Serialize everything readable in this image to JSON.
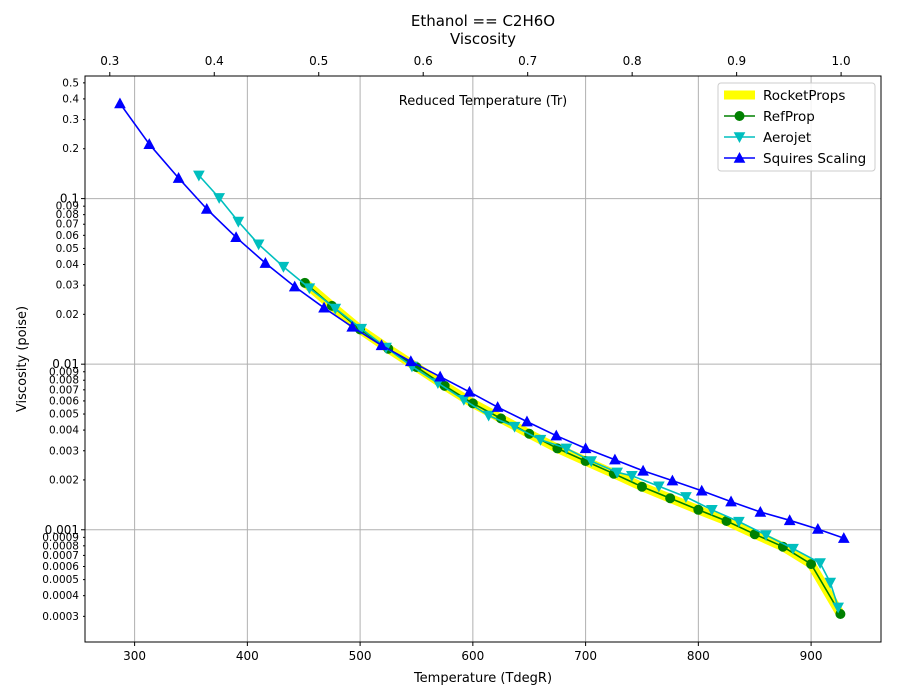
{
  "chart_data": {
    "type": "line",
    "title": "Ethanol == C2H6O",
    "subtitle": "Viscosity",
    "annotation": "Reduced Temperature (Tr)",
    "xlabel": "Temperature (TdegR)",
    "ylabel": "Viscosity (poise)",
    "y_scale": "log",
    "grid": true,
    "legend_position": "top-right",
    "xlim": [
      256,
      962
    ],
    "ylim": [
      0.00021,
      0.55
    ],
    "x_ticks": [
      300,
      400,
      500,
      600,
      700,
      800,
      900
    ],
    "x_tick_labels": [
      "300",
      "400",
      "500",
      "600",
      "700",
      "800",
      "900"
    ],
    "top_axis": {
      "label": "Reduced Temperature (Tr)",
      "tr_per_degR": 0.0010792,
      "ticks": [
        0.3,
        0.4,
        0.5,
        0.6,
        0.7,
        0.8,
        0.9,
        1.0
      ],
      "tick_labels": [
        "0.3",
        "0.4",
        "0.5",
        "0.6",
        "0.7",
        "0.8",
        "0.9",
        "1.0"
      ]
    },
    "y_major_ticks": [
      0.001,
      0.01,
      0.1
    ],
    "y_major_labels": [
      "0.001",
      "0.01",
      "0.1"
    ],
    "y_minor_ticks": [
      0.0003,
      0.0004,
      0.0005,
      0.0006,
      0.0007,
      0.0008,
      0.0009,
      0.002,
      0.003,
      0.004,
      0.005,
      0.006,
      0.007,
      0.008,
      0.009,
      0.02,
      0.03,
      0.04,
      0.05,
      0.06,
      0.07,
      0.08,
      0.09,
      0.2,
      0.3,
      0.4,
      0.5
    ],
    "y_minor_labels": [
      "0.0003",
      "0.0004",
      "0.0005",
      "0.0006",
      "0.0007",
      "0.0008",
      "0.0009",
      "0.002",
      "0.003",
      "0.004",
      "0.005",
      "0.006",
      "0.007",
      "0.008",
      "0.009",
      "0.02",
      "0.03",
      "0.04",
      "0.05",
      "0.06",
      "0.07",
      "0.08",
      "0.09",
      "0.2",
      "0.3",
      "0.4",
      "0.5"
    ],
    "series": [
      {
        "name": "RocketProps",
        "color": "#ffff00",
        "marker": "none",
        "x": [
          451,
          475,
          500,
          525,
          550,
          575,
          600,
          625,
          650,
          675,
          700,
          725,
          750,
          775,
          800,
          825,
          850,
          875,
          900,
          926
        ],
        "y": [
          0.031,
          0.0225,
          0.0162,
          0.0124,
          0.0096,
          0.0074,
          0.0058,
          0.0047,
          0.0038,
          0.0031,
          0.0026,
          0.00218,
          0.00182,
          0.00155,
          0.00132,
          0.00113,
          0.00094,
          0.00079,
          0.00062,
          0.00031
        ]
      },
      {
        "name": "RefProp",
        "color": "#008000",
        "marker": "circle",
        "x": [
          451,
          475,
          500,
          525,
          550,
          575,
          600,
          625,
          650,
          675,
          700,
          725,
          750,
          775,
          800,
          825,
          850,
          875,
          900,
          926
        ],
        "y": [
          0.031,
          0.0225,
          0.0162,
          0.0124,
          0.0096,
          0.0074,
          0.0058,
          0.0047,
          0.0038,
          0.0031,
          0.0026,
          0.00218,
          0.00182,
          0.00155,
          0.00132,
          0.00113,
          0.00094,
          0.00079,
          0.00062,
          0.00031
        ]
      },
      {
        "name": "Aerojet",
        "color": "#00bfbf",
        "marker": "triangle-down",
        "x": [
          357,
          375,
          392,
          410,
          432,
          455,
          478,
          501,
          523,
          546,
          569,
          592,
          614,
          637,
          660,
          683,
          705,
          728,
          741,
          765,
          789,
          812,
          836,
          860,
          884,
          908,
          917,
          924
        ],
        "y": [
          0.138,
          0.101,
          0.0727,
          0.053,
          0.0388,
          0.0288,
          0.0217,
          0.0164,
          0.0126,
          0.0097,
          0.0077,
          0.0061,
          0.0049,
          0.0042,
          0.0035,
          0.0031,
          0.0026,
          0.00222,
          0.00212,
          0.00183,
          0.00158,
          0.00132,
          0.00112,
          0.00093,
          0.00077,
          0.00063,
          0.00048,
          0.00034
        ]
      },
      {
        "name": "Squires Scaling",
        "color": "#0000ff",
        "marker": "triangle-up",
        "x": [
          287,
          313,
          339,
          364,
          390,
          416,
          442,
          468,
          493,
          519,
          545,
          571,
          597,
          622,
          648,
          674,
          700,
          726,
          751,
          777,
          803,
          829,
          855,
          881,
          906,
          929
        ],
        "y": [
          0.375,
          0.213,
          0.133,
          0.0865,
          0.0584,
          0.0408,
          0.0294,
          0.0219,
          0.0168,
          0.013,
          0.0104,
          0.0084,
          0.0068,
          0.0055,
          0.0045,
          0.0037,
          0.0031,
          0.00265,
          0.00227,
          0.00198,
          0.00172,
          0.00148,
          0.00128,
          0.00114,
          0.00101,
          0.00089
        ]
      }
    ]
  }
}
